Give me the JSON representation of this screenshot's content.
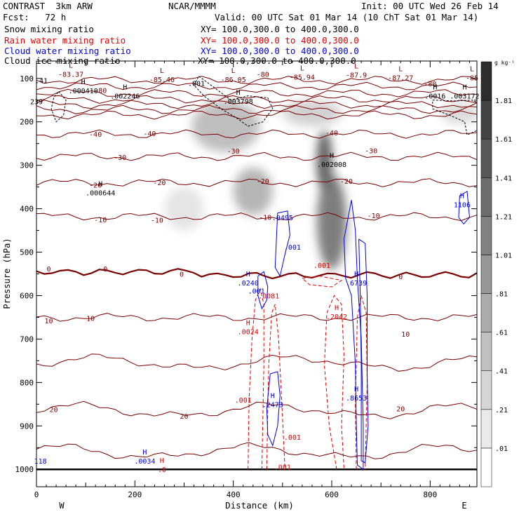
{
  "header": {
    "model": "CONTRAST  3km ARW",
    "org": "NCAR/MMMM",
    "init": "Init: 00 UTC Wed 26 Feb 14",
    "fcst": "Fcst:   72 h",
    "valid": "Valid: 00 UTC Sat 01 Mar 14 (10 ChT Sat 01 Mar 14)",
    "fields": [
      {
        "name": "Snow mixing ratio",
        "xy": "XY= 100.0,300.0 to 400.0,300.0",
        "color": "#000000"
      },
      {
        "name": "Rain water mixing ratio",
        "xy": "XY= 100.0,300.0 to 400.0,300.0",
        "color": "#e00000"
      },
      {
        "name": "Cloud water mixing ratio",
        "xy": "XY= 100.0,300.0 to 400.0,300.0",
        "color": "#0000e0"
      },
      {
        "name": "Cloud ice mixing ratio",
        "xy": "XY= 100.0,300.0 to 400.0,300.0",
        "color": "#000000"
      }
    ]
  },
  "colors": {
    "temperature": "#7a0000",
    "rain": "#e00000",
    "cloud_water": "#0000e0",
    "cloud_ice": "#000000"
  },
  "chart_data": {
    "type": "cross-section",
    "xlabel": "Distance (km)",
    "ylabel": "Pressure (hPa)",
    "xlim": [
      0,
      895
    ],
    "ylim": [
      1040,
      60
    ],
    "x_ticks": [
      0,
      200,
      400,
      600,
      800
    ],
    "y_ticks": [
      100,
      200,
      300,
      400,
      500,
      600,
      700,
      800,
      900,
      1000
    ],
    "west_label": "W",
    "east_label": "E",
    "surface_pressure": 1000,
    "snow_shading": {
      "unit": "g kg⁻¹",
      "levels": [
        ".01",
        ".21",
        ".41",
        ".61",
        ".81",
        "1.01",
        "1.21",
        "1.41",
        "1.61",
        "1.81"
      ],
      "level_values": [
        0.01,
        0.21,
        0.41,
        0.61,
        0.81,
        1.01,
        1.21,
        1.41,
        1.61,
        1.81
      ],
      "blobs": [
        {
          "x": 385,
          "p": 210,
          "dx": 70,
          "dp": 60,
          "value": 0.5
        },
        {
          "x": 560,
          "p": 180,
          "dx": 60,
          "dp": 30,
          "value": 0.3
        },
        {
          "x": 440,
          "p": 360,
          "dx": 40,
          "dp": 55,
          "value": 0.6
        },
        {
          "x": 585,
          "p": 290,
          "dx": 16,
          "dp": 70,
          "value": 1.5
        },
        {
          "x": 600,
          "p": 430,
          "dx": 30,
          "dp": 110,
          "value": 1.2
        },
        {
          "x": 300,
          "p": 400,
          "dx": 40,
          "dp": 50,
          "value": 0.1
        },
        {
          "x": 860,
          "p": 180,
          "dx": 40,
          "dp": 25,
          "value": 0.2
        }
      ]
    },
    "temperature_contours": {
      "unit": "°C",
      "isotherms": [
        {
          "label": "-80",
          "p": 104
        },
        {
          "label": "",
          "p": 118
        },
        {
          "label": "",
          "p": 134
        },
        {
          "label": "",
          "p": 148
        },
        {
          "label": "",
          "p": 160
        },
        {
          "label": "",
          "p": 172
        },
        {
          "label": "",
          "p": 184
        },
        {
          "label": "-40",
          "p": 228
        },
        {
          "label": "-30",
          "p": 280
        },
        {
          "label": "-20",
          "p": 340
        },
        {
          "label": "-10",
          "p": 418
        },
        {
          "label": "0",
          "p": 545
        },
        {
          "label": "10",
          "p": 650
        },
        {
          "label": "",
          "p": 755
        },
        {
          "label": "20",
          "p": 865
        },
        {
          "label": "",
          "p": 960
        }
      ],
      "labels": [
        {
          "text": "-80",
          "x": 130,
          "p": 127
        },
        {
          "text": "-80",
          "x": 460,
          "p": 90
        },
        {
          "text": "-80",
          "x": 800,
          "p": 112
        },
        {
          "text": "-40",
          "x": 120,
          "p": 228
        },
        {
          "text": "-40",
          "x": 230,
          "p": 226
        },
        {
          "text": "-40",
          "x": 600,
          "p": 225
        },
        {
          "text": "-30",
          "x": 170,
          "p": 281
        },
        {
          "text": "-30",
          "x": 400,
          "p": 267
        },
        {
          "text": "-30",
          "x": 680,
          "p": 266
        },
        {
          "text": "-20",
          "x": 120,
          "p": 345
        },
        {
          "text": "-20",
          "x": 250,
          "p": 339
        },
        {
          "text": "-20",
          "x": 460,
          "p": 336
        },
        {
          "text": "-20",
          "x": 630,
          "p": 336
        },
        {
          "text": "-10",
          "x": 130,
          "p": 425
        },
        {
          "text": "-10",
          "x": 245,
          "p": 426
        },
        {
          "text": "-10",
          "x": 465,
          "p": 419
        },
        {
          "text": "-10",
          "x": 685,
          "p": 415
        },
        {
          "text": "0",
          "x": 25,
          "p": 538
        },
        {
          "text": "0",
          "x": 140,
          "p": 538
        },
        {
          "text": "0",
          "x": 295,
          "p": 550
        },
        {
          "text": "0",
          "x": 740,
          "p": 556
        },
        {
          "text": "10",
          "x": 25,
          "p": 657
        },
        {
          "text": "10",
          "x": 110,
          "p": 652
        },
        {
          "text": "10",
          "x": 750,
          "p": 688
        },
        {
          "text": "20",
          "x": 35,
          "p": 862
        },
        {
          "text": "20",
          "x": 300,
          "p": 877
        },
        {
          "text": "20",
          "x": 740,
          "p": 860
        }
      ],
      "extrema": [
        {
          "type": "L",
          "value": "-83.37",
          "x": 70,
          "p": 88
        },
        {
          "type": "L",
          "value": "-85.46",
          "x": 255,
          "p": 100
        },
        {
          "type": "L",
          "value": "-86.05",
          "x": 400,
          "p": 100
        },
        {
          "type": "L",
          "value": "-85.94",
          "x": 540,
          "p": 95
        },
        {
          "type": "L",
          "value": "-87.9",
          "x": 650,
          "p": 90
        },
        {
          "type": "L",
          "value": "-87.27",
          "x": 740,
          "p": 96
        },
        {
          "type": "L",
          "value": "-85",
          "x": 885,
          "p": 96
        }
      ]
    },
    "ice_extrema": [
      {
        "text": ".41",
        "x": 10,
        "p": 104,
        "h": false
      },
      {
        "text": ".001",
        "x": 325,
        "p": 111,
        "h": false
      },
      {
        "text": ".000410",
        "x": 95,
        "p": 128,
        "h": true
      },
      {
        "text": ".002246",
        "x": 180,
        "p": 140,
        "h": true
      },
      {
        "text": ".003798",
        "x": 410,
        "p": 152,
        "h": true
      },
      {
        "text": ".0016",
        "x": 810,
        "p": 140,
        "h": true
      },
      {
        "text": ".003172",
        "x": 870,
        "p": 140,
        "h": true
      },
      {
        "text": "239",
        "x": 0,
        "p": 153,
        "h": false
      },
      {
        "text": ".002008",
        "x": 600,
        "p": 297,
        "h": true
      },
      {
        "text": ".000644",
        "x": 130,
        "p": 363,
        "h": true
      }
    ],
    "cloud_water_extrema": [
      {
        "text": ".0495",
        "x": 500,
        "p": 420,
        "h": false
      },
      {
        "text": ".001",
        "x": 520,
        "p": 488,
        "h": false
      },
      {
        "text": ".0240",
        "x": 430,
        "p": 570,
        "h": true
      },
      {
        "text": ".001",
        "x": 447,
        "p": 589,
        "h": false
      },
      {
        "text": ".6739",
        "x": 650,
        "p": 570,
        "h": true
      },
      {
        "text": "1106",
        "x": 865,
        "p": 390,
        "h": true
      },
      {
        "text": ".8653",
        "x": 650,
        "p": 835,
        "h": true
      },
      {
        "text": ".2473",
        "x": 480,
        "p": 850,
        "h": true
      },
      {
        "text": ".0034",
        "x": 220,
        "p": 980,
        "h": true
      },
      {
        "text": "118",
        "x": 8,
        "p": 980,
        "h": false
      }
    ],
    "rain_extrema": [
      {
        "text": ".001",
        "x": 580,
        "p": 530,
        "h": false
      },
      {
        "text": ".0081",
        "x": 472,
        "p": 600,
        "h": false
      },
      {
        "text": ".2042",
        "x": 610,
        "p": 648,
        "h": true
      },
      {
        "text": ".0024",
        "x": 430,
        "p": 682,
        "h": true
      },
      {
        "text": ".001",
        "x": 420,
        "p": 840,
        "h": false
      },
      {
        "text": ".001",
        "x": 520,
        "p": 925,
        "h": false
      },
      {
        "text": ".001",
        "x": 500,
        "p": 994,
        "h": false
      },
      {
        "text": ".0",
        "x": 255,
        "p": 1000,
        "h": true
      }
    ],
    "rain_contours": [
      [
        [
          430,
          1000
        ],
        [
          432,
          840
        ],
        [
          438,
          700
        ],
        [
          445,
          610
        ],
        [
          455,
          585
        ],
        [
          462,
          620
        ],
        [
          462,
          760
        ],
        [
          458,
          1000
        ]
      ],
      [
        [
          468,
          1000
        ],
        [
          470,
          860
        ],
        [
          472,
          760
        ],
        [
          478,
          640
        ],
        [
          485,
          620
        ],
        [
          492,
          700
        ],
        [
          500,
          880
        ],
        [
          505,
          1000
        ]
      ],
      [
        [
          610,
          1000
        ],
        [
          595,
          900
        ],
        [
          585,
          760
        ],
        [
          590,
          640
        ],
        [
          605,
          600
        ],
        [
          620,
          620
        ],
        [
          625,
          740
        ],
        [
          620,
          900
        ],
        [
          625,
          1000
        ]
      ],
      [
        [
          650,
          1000
        ],
        [
          648,
          850
        ],
        [
          652,
          650
        ],
        [
          660,
          600
        ],
        [
          670,
          640
        ],
        [
          672,
          800
        ],
        [
          668,
          1000
        ]
      ],
      [
        [
          540,
          560
        ],
        [
          575,
          555
        ],
        [
          620,
          565
        ],
        [
          600,
          580
        ],
        [
          555,
          575
        ],
        [
          540,
          560
        ]
      ]
    ],
    "cloud_contours": [
      [
        [
          490,
          410
        ],
        [
          510,
          405
        ],
        [
          515,
          460
        ],
        [
          505,
          505
        ],
        [
          495,
          555
        ],
        [
          485,
          535
        ],
        [
          488,
          460
        ],
        [
          490,
          410
        ]
      ],
      [
        [
          450,
          555
        ],
        [
          462,
          545
        ],
        [
          470,
          580
        ],
        [
          468,
          610
        ],
        [
          458,
          630
        ],
        [
          450,
          600
        ],
        [
          450,
          555
        ]
      ],
      [
        [
          475,
          780
        ],
        [
          490,
          775
        ],
        [
          495,
          830
        ],
        [
          490,
          900
        ],
        [
          480,
          945
        ],
        [
          470,
          920
        ],
        [
          468,
          860
        ],
        [
          475,
          780
        ]
      ],
      [
        [
          625,
          470
        ],
        [
          640,
          380
        ],
        [
          648,
          450
        ],
        [
          652,
          560
        ],
        [
          660,
          700
        ],
        [
          664,
          900
        ],
        [
          664,
          1000
        ],
        [
          652,
          990
        ],
        [
          650,
          900
        ],
        [
          648,
          760
        ],
        [
          640,
          600
        ],
        [
          628,
          560
        ],
        [
          625,
          470
        ]
      ],
      [
        [
          655,
          470
        ],
        [
          668,
          480
        ],
        [
          672,
          600
        ],
        [
          672,
          780
        ],
        [
          674,
          900
        ],
        [
          668,
          985
        ],
        [
          660,
          980
        ],
        [
          660,
          760
        ],
        [
          658,
          600
        ],
        [
          655,
          470
        ]
      ],
      [
        [
          860,
          370
        ],
        [
          875,
          360
        ],
        [
          880,
          420
        ],
        [
          868,
          435
        ],
        [
          858,
          420
        ],
        [
          860,
          370
        ]
      ]
    ],
    "ice_contours": [
      [
        [
          330,
          95
        ],
        [
          360,
          120
        ],
        [
          395,
          150
        ],
        [
          430,
          140
        ],
        [
          470,
          145
        ],
        [
          480,
          170
        ],
        [
          460,
          200
        ],
        [
          430,
          210
        ],
        [
          405,
          190
        ],
        [
          375,
          170
        ],
        [
          340,
          140
        ],
        [
          320,
          115
        ],
        [
          330,
          95
        ]
      ],
      [
        [
          45,
          130
        ],
        [
          60,
          150
        ],
        [
          55,
          185
        ],
        [
          40,
          200
        ],
        [
          30,
          170
        ],
        [
          35,
          145
        ],
        [
          45,
          130
        ]
      ],
      [
        [
          805,
          150
        ],
        [
          850,
          152
        ],
        [
          885,
          150
        ],
        [
          895,
          155
        ],
        [
          895,
          220
        ],
        [
          875,
          230
        ],
        [
          870,
          200
        ],
        [
          840,
          185
        ],
        [
          805,
          170
        ],
        [
          805,
          150
        ]
      ]
    ]
  }
}
